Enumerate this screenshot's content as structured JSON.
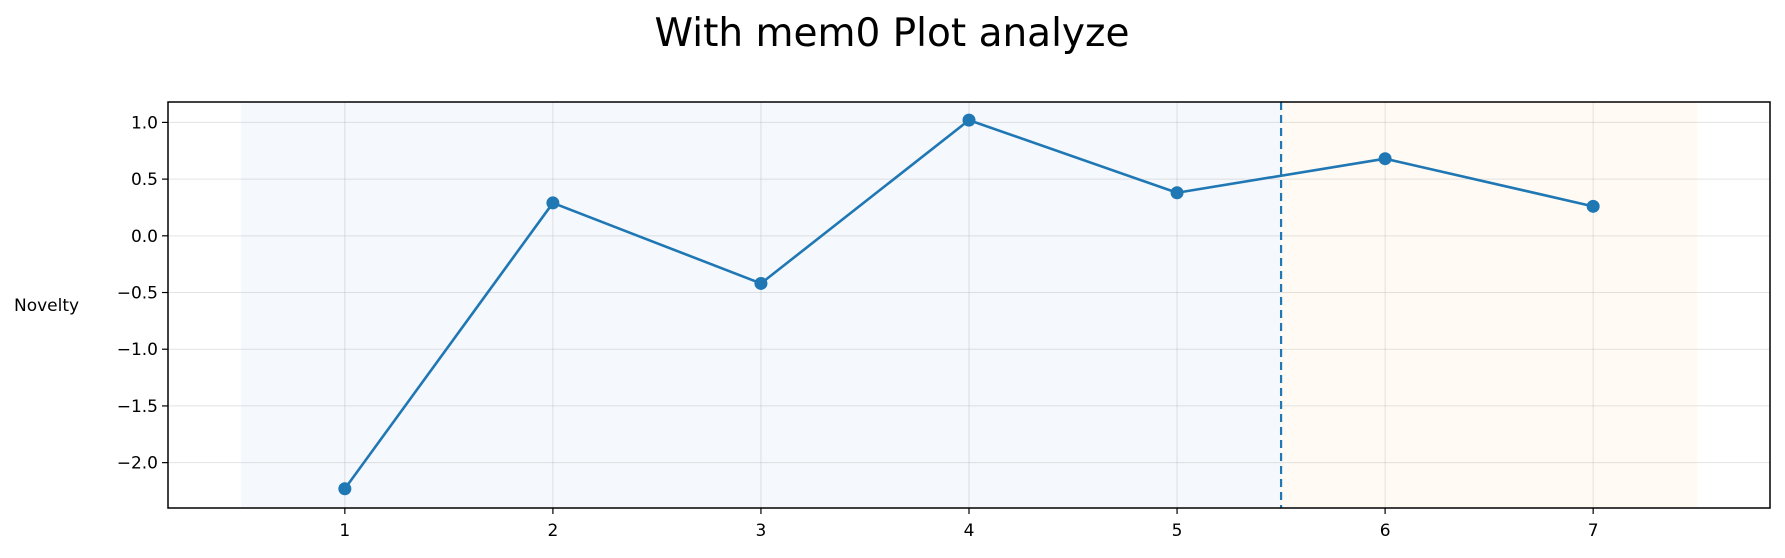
{
  "chart_data": {
    "type": "line",
    "title": "With mem0 Plot analyze",
    "xlabel": "",
    "ylabel": "Novelty",
    "x": [
      1,
      2,
      3,
      4,
      5,
      6,
      7
    ],
    "series": [
      {
        "values": [
          -2.23,
          0.29,
          -0.42,
          1.02,
          0.38,
          0.68,
          0.26
        ],
        "color": "#1f77b4"
      }
    ],
    "x_ticks": [
      "1",
      "2",
      "3",
      "4",
      "5",
      "6",
      "7"
    ],
    "y_ticks": [
      "1.0",
      "0.5",
      "0.0",
      "−0.5",
      "−1.0",
      "−1.5",
      "−2.0"
    ],
    "y_tick_values": [
      1.0,
      0.5,
      0.0,
      -0.5,
      -1.0,
      -1.5,
      -2.0
    ],
    "xlim": [
      0.15,
      7.85
    ],
    "ylim": [
      -2.4,
      1.18
    ],
    "grid": true,
    "regions": [
      {
        "x_from": 0.5,
        "x_to": 5.5,
        "color": "#f5f8fc"
      },
      {
        "x_from": 5.5,
        "x_to": 7.5,
        "color": "#fffaf4"
      }
    ],
    "vline": {
      "x": 5.5,
      "style": "dashed",
      "color": "#1f77b4"
    }
  }
}
